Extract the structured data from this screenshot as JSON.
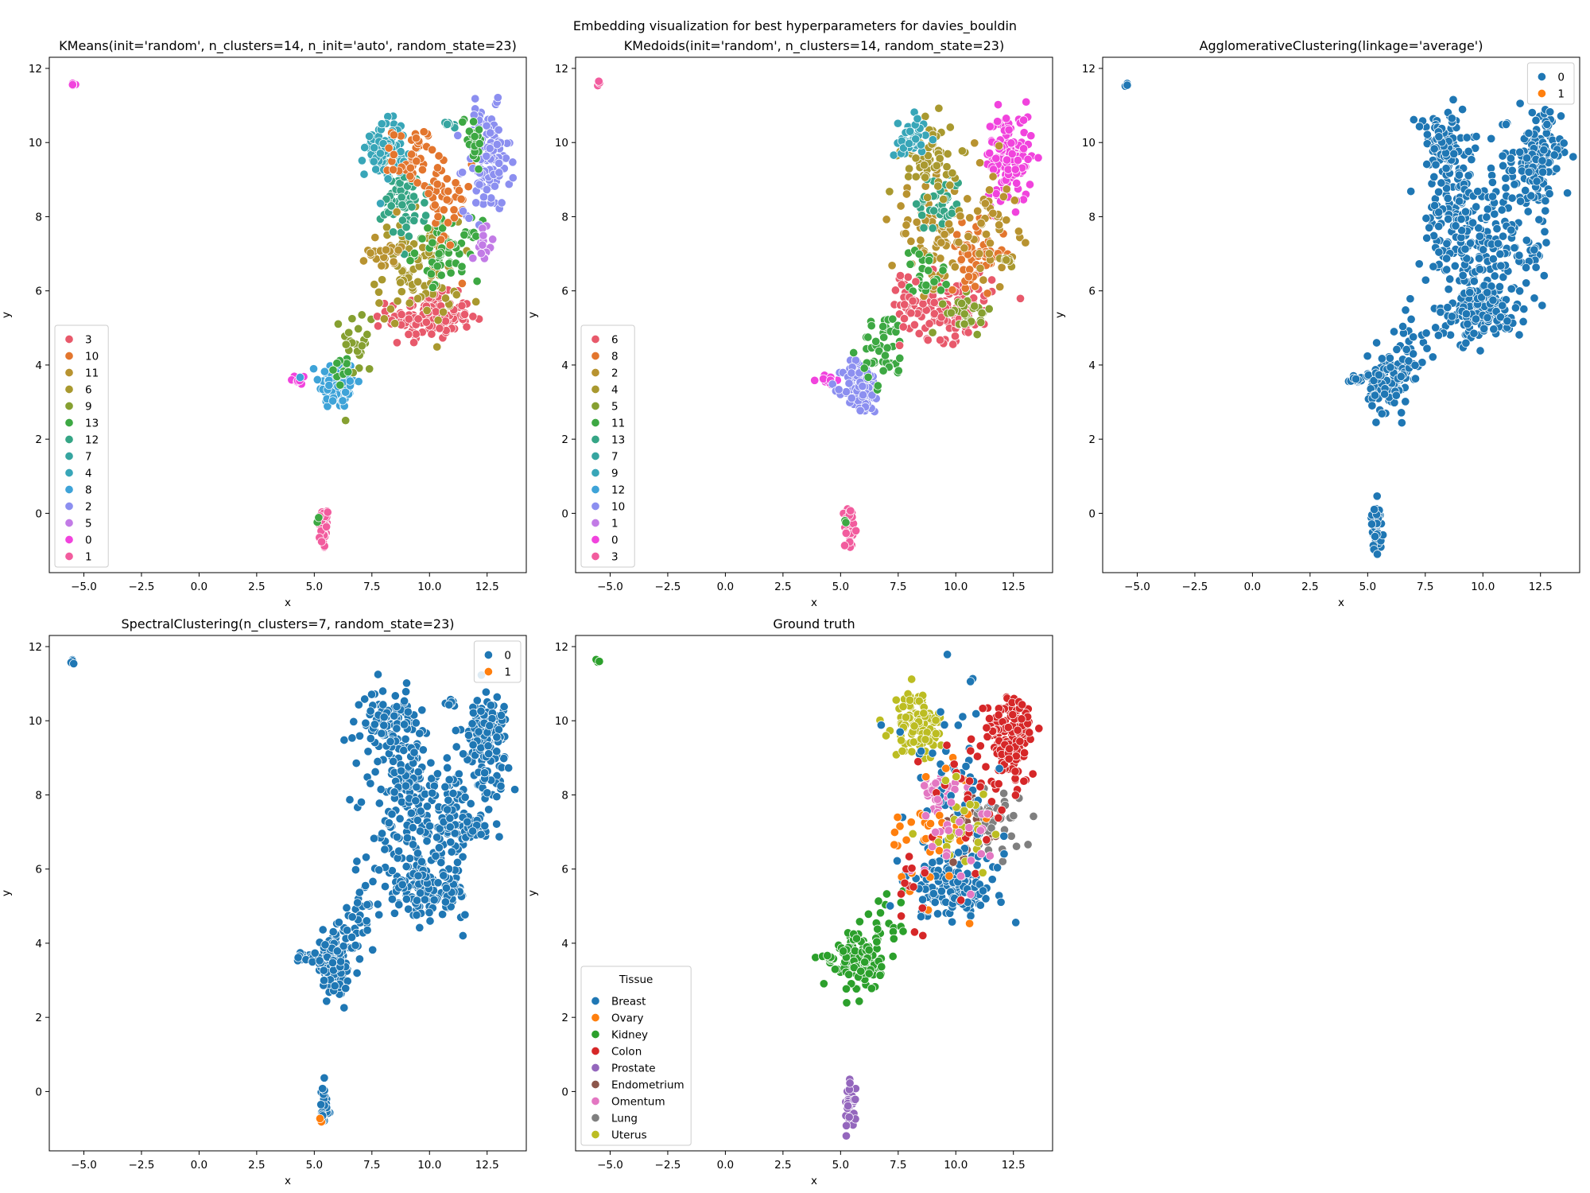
{
  "suptitle": "Embedding visualization for best hyperparameters for davies_bouldin",
  "chart_data": [
    {
      "type": "scatter",
      "title": "KMeans(init='random', n_clusters=14, n_init='auto', random_state=23)",
      "xlabel": "x",
      "ylabel": "y",
      "xlim": [
        -6.5,
        14.2
      ],
      "ylim": [
        -1.6,
        12.3
      ],
      "xticks": [
        "−5.0",
        "−2.5",
        "0.0",
        "2.5",
        "5.0",
        "7.5",
        "10.0",
        "12.5"
      ],
      "yticks": [
        "0",
        "2",
        "4",
        "6",
        "8",
        "10",
        "12"
      ],
      "legend": {
        "title": "",
        "placement": "lower-left",
        "entries": [
          {
            "label": "3",
            "color": "#e8596b"
          },
          {
            "label": "10",
            "color": "#e3762e"
          },
          {
            "label": "11",
            "color": "#b89330"
          },
          {
            "label": "6",
            "color": "#a9992f"
          },
          {
            "label": "9",
            "color": "#86a031"
          },
          {
            "label": "13",
            "color": "#3da843"
          },
          {
            "label": "12",
            "color": "#35a585"
          },
          {
            "label": "7",
            "color": "#36a5a0"
          },
          {
            "label": "4",
            "color": "#38a6b8"
          },
          {
            "label": "8",
            "color": "#3ea3d8"
          },
          {
            "label": "2",
            "color": "#8c8ff0"
          },
          {
            "label": "5",
            "color": "#c27be6"
          },
          {
            "label": "0",
            "color": "#f143dd"
          },
          {
            "label": "1",
            "color": "#f25c9e"
          }
        ]
      },
      "regions": [
        {
          "cx": -5.5,
          "cy": 11.6,
          "sx": 0.05,
          "sy": 0.05,
          "n": 4,
          "color": "#f143dd"
        },
        {
          "cx": 5.4,
          "cy": -0.4,
          "sx": 0.12,
          "sy": 0.3,
          "n": 40,
          "color": "#f25c9e"
        },
        {
          "cx": 5.2,
          "cy": -0.2,
          "sx": 0.05,
          "sy": 0.05,
          "n": 2,
          "color": "#3da843"
        },
        {
          "cx": 4.4,
          "cy": 3.6,
          "sx": 0.2,
          "sy": 0.07,
          "n": 12,
          "color": "#f143dd"
        },
        {
          "cx": 6.0,
          "cy": 3.5,
          "sx": 0.4,
          "sy": 0.35,
          "n": 110,
          "color": "#3ea3d8"
        },
        {
          "cx": 6.9,
          "cy": 4.6,
          "sx": 0.35,
          "sy": 0.5,
          "n": 25,
          "color": "#86a031"
        },
        {
          "cx": 10.0,
          "cy": 5.3,
          "sx": 0.9,
          "sy": 0.3,
          "n": 130,
          "color": "#e8596b"
        },
        {
          "cx": 9.5,
          "cy": 6.5,
          "sx": 0.9,
          "sy": 0.7,
          "n": 90,
          "color": "#a9992f"
        },
        {
          "cx": 10.8,
          "cy": 7.1,
          "sx": 0.7,
          "sy": 0.4,
          "n": 60,
          "color": "#3da843"
        },
        {
          "cx": 8.9,
          "cy": 8.5,
          "sx": 0.5,
          "sy": 0.55,
          "n": 80,
          "color": "#35a585"
        },
        {
          "cx": 8.1,
          "cy": 9.9,
          "sx": 0.45,
          "sy": 0.4,
          "n": 80,
          "color": "#38a6b8"
        },
        {
          "cx": 9.3,
          "cy": 9.6,
          "sx": 0.45,
          "sy": 0.4,
          "n": 40,
          "color": "#e3762e"
        },
        {
          "cx": 10.6,
          "cy": 8.3,
          "sx": 0.6,
          "sy": 0.7,
          "n": 40,
          "color": "#e3762e"
        },
        {
          "cx": 12.5,
          "cy": 9.5,
          "sx": 0.5,
          "sy": 0.7,
          "n": 120,
          "color": "#8c8ff0"
        },
        {
          "cx": 11.9,
          "cy": 10.2,
          "sx": 0.25,
          "sy": 0.35,
          "n": 25,
          "color": "#3da843"
        },
        {
          "cx": 12.3,
          "cy": 7.2,
          "sx": 0.2,
          "sy": 0.3,
          "n": 15,
          "color": "#c27be6"
        },
        {
          "cx": 10.9,
          "cy": 10.5,
          "sx": 0.15,
          "sy": 0.05,
          "n": 8,
          "color": "#36a5a0"
        },
        {
          "cx": 8.0,
          "cy": 7.1,
          "sx": 0.35,
          "sy": 0.3,
          "n": 25,
          "color": "#b89330"
        },
        {
          "cx": 6.3,
          "cy": 3.9,
          "sx": 0.25,
          "sy": 0.2,
          "n": 10,
          "color": "#3da843"
        }
      ]
    },
    {
      "type": "scatter",
      "title": "KMedoids(init='random', n_clusters=14, random_state=23)",
      "xlabel": "x",
      "ylabel": "y",
      "xlim": [
        -6.5,
        14.2
      ],
      "ylim": [
        -1.6,
        12.3
      ],
      "xticks": [
        "−5.0",
        "−2.5",
        "0.0",
        "2.5",
        "5.0",
        "7.5",
        "10.0",
        "12.5"
      ],
      "yticks": [
        "0",
        "2",
        "4",
        "6",
        "8",
        "10",
        "12"
      ],
      "legend": {
        "title": "",
        "placement": "lower-left",
        "entries": [
          {
            "label": "6",
            "color": "#e8596b"
          },
          {
            "label": "8",
            "color": "#e3762e"
          },
          {
            "label": "2",
            "color": "#b89330"
          },
          {
            "label": "4",
            "color": "#a9992f"
          },
          {
            "label": "5",
            "color": "#86a031"
          },
          {
            "label": "11",
            "color": "#3da843"
          },
          {
            "label": "13",
            "color": "#35a585"
          },
          {
            "label": "7",
            "color": "#36a5a0"
          },
          {
            "label": "9",
            "color": "#38a6b8"
          },
          {
            "label": "12",
            "color": "#3ea3d8"
          },
          {
            "label": "10",
            "color": "#8c8ff0"
          },
          {
            "label": "1",
            "color": "#c27be6"
          },
          {
            "label": "0",
            "color": "#f143dd"
          },
          {
            "label": "3",
            "color": "#f25c9e"
          }
        ]
      },
      "regions": [
        {
          "cx": -5.5,
          "cy": 11.6,
          "sx": 0.05,
          "sy": 0.05,
          "n": 4,
          "color": "#f25c9e"
        },
        {
          "cx": 5.4,
          "cy": -0.4,
          "sx": 0.12,
          "sy": 0.3,
          "n": 40,
          "color": "#f25c9e"
        },
        {
          "cx": 5.2,
          "cy": -0.2,
          "sx": 0.05,
          "sy": 0.05,
          "n": 2,
          "color": "#3da843"
        },
        {
          "cx": 4.4,
          "cy": 3.6,
          "sx": 0.2,
          "sy": 0.07,
          "n": 12,
          "color": "#f143dd"
        },
        {
          "cx": 5.9,
          "cy": 3.4,
          "sx": 0.4,
          "sy": 0.35,
          "n": 110,
          "color": "#8c8ff0"
        },
        {
          "cx": 6.9,
          "cy": 4.4,
          "sx": 0.5,
          "sy": 0.5,
          "n": 45,
          "color": "#3da843"
        },
        {
          "cx": 9.6,
          "cy": 5.6,
          "sx": 1.0,
          "sy": 0.45,
          "n": 130,
          "color": "#e8596b"
        },
        {
          "cx": 10.6,
          "cy": 5.4,
          "sx": 0.5,
          "sy": 0.25,
          "n": 30,
          "color": "#86a031"
        },
        {
          "cx": 10.9,
          "cy": 7.0,
          "sx": 0.6,
          "sy": 0.4,
          "n": 60,
          "color": "#e3762e"
        },
        {
          "cx": 9.0,
          "cy": 7.5,
          "sx": 0.9,
          "sy": 0.7,
          "n": 70,
          "color": "#b89330"
        },
        {
          "cx": 9.3,
          "cy": 8.4,
          "sx": 0.5,
          "sy": 0.4,
          "n": 40,
          "color": "#35a585"
        },
        {
          "cx": 8.9,
          "cy": 9.6,
          "sx": 0.6,
          "sy": 0.5,
          "n": 60,
          "color": "#a9992f"
        },
        {
          "cx": 8.0,
          "cy": 10.1,
          "sx": 0.35,
          "sy": 0.3,
          "n": 40,
          "color": "#38a6b8"
        },
        {
          "cx": 12.3,
          "cy": 9.6,
          "sx": 0.5,
          "sy": 0.6,
          "n": 130,
          "color": "#f143dd"
        },
        {
          "cx": 11.5,
          "cy": 8.0,
          "sx": 0.6,
          "sy": 0.8,
          "n": 40,
          "color": "#b89330"
        },
        {
          "cx": 12.2,
          "cy": 6.9,
          "sx": 0.15,
          "sy": 0.1,
          "n": 8,
          "color": "#a9992f"
        },
        {
          "cx": 8.7,
          "cy": 6.4,
          "sx": 0.5,
          "sy": 0.4,
          "n": 25,
          "color": "#3da843"
        },
        {
          "cx": 7.9,
          "cy": 5.9,
          "sx": 0.25,
          "sy": 0.35,
          "n": 12,
          "color": "#e8596b"
        }
      ]
    },
    {
      "type": "scatter",
      "title": "AgglomerativeClustering(linkage='average')",
      "xlabel": "x",
      "ylabel": "y",
      "xlim": [
        -6.5,
        14.2
      ],
      "ylim": [
        -1.6,
        12.3
      ],
      "xticks": [
        "−5.0",
        "−2.5",
        "0.0",
        "2.5",
        "5.0",
        "7.5",
        "10.0",
        "12.5"
      ],
      "yticks": [
        "0",
        "2",
        "4",
        "6",
        "8",
        "10",
        "12"
      ],
      "legend": {
        "title": "",
        "placement": "upper-right",
        "entries": [
          {
            "label": "0",
            "color": "#1f77b4"
          },
          {
            "label": "1",
            "color": "#ff7f0e"
          }
        ]
      },
      "regions": "all-blue"
    },
    {
      "type": "scatter",
      "title": "SpectralClustering(n_clusters=7, random_state=23)",
      "xlabel": "x",
      "ylabel": "y",
      "xlim": [
        -6.5,
        14.2
      ],
      "ylim": [
        -1.6,
        12.3
      ],
      "xticks": [
        "−5.0",
        "−2.5",
        "0.0",
        "2.5",
        "5.0",
        "7.5",
        "10.0",
        "12.5"
      ],
      "yticks": [
        "0",
        "2",
        "4",
        "6",
        "8",
        "10",
        "12"
      ],
      "legend": {
        "title": "",
        "placement": "upper-right",
        "entries": [
          {
            "label": "0",
            "color": "#1f77b4"
          },
          {
            "label": "1",
            "color": "#ff7f0e"
          }
        ]
      },
      "regions": "all-blue-with-orange"
    },
    {
      "type": "scatter",
      "title": "Ground truth",
      "xlabel": "x",
      "ylabel": "y",
      "xlim": [
        -6.5,
        14.2
      ],
      "ylim": [
        -1.6,
        12.3
      ],
      "xticks": [
        "−5.0",
        "−2.5",
        "0.0",
        "2.5",
        "5.0",
        "7.5",
        "10.0",
        "12.5"
      ],
      "yticks": [
        "0",
        "2",
        "4",
        "6",
        "8",
        "10",
        "12"
      ],
      "legend": {
        "title": "Tissue",
        "placement": "lower-left",
        "entries": [
          {
            "label": "Breast",
            "color": "#1f77b4"
          },
          {
            "label": "Ovary",
            "color": "#ff7f0e"
          },
          {
            "label": "Kidney",
            "color": "#2ca02c"
          },
          {
            "label": "Colon",
            "color": "#d62728"
          },
          {
            "label": "Prostate",
            "color": "#9467bd"
          },
          {
            "label": "Endometrium",
            "color": "#8c564b"
          },
          {
            "label": "Omentum",
            "color": "#e377c2"
          },
          {
            "label": "Lung",
            "color": "#7f7f7f"
          },
          {
            "label": "Uterus",
            "color": "#bcbd22"
          }
        ]
      },
      "regions": [
        {
          "cx": -5.5,
          "cy": 11.6,
          "sx": 0.05,
          "sy": 0.05,
          "n": 4,
          "color": "#2ca02c"
        },
        {
          "cx": 5.4,
          "cy": -0.4,
          "sx": 0.12,
          "sy": 0.3,
          "n": 40,
          "color": "#9467bd"
        },
        {
          "cx": 4.4,
          "cy": 3.6,
          "sx": 0.2,
          "sy": 0.07,
          "n": 12,
          "color": "#2ca02c"
        },
        {
          "cx": 5.9,
          "cy": 3.5,
          "sx": 0.45,
          "sy": 0.4,
          "n": 130,
          "color": "#2ca02c"
        },
        {
          "cx": 6.9,
          "cy": 4.6,
          "sx": 0.4,
          "sy": 0.5,
          "n": 20,
          "color": "#2ca02c"
        },
        {
          "cx": 9.8,
          "cy": 5.5,
          "sx": 1.0,
          "sy": 0.4,
          "n": 130,
          "color": "#1f77b4"
        },
        {
          "cx": 10.5,
          "cy": 7.0,
          "sx": 0.6,
          "sy": 0.4,
          "n": 40,
          "color": "#8c564b"
        },
        {
          "cx": 11.6,
          "cy": 7.2,
          "sx": 0.6,
          "sy": 0.4,
          "n": 45,
          "color": "#7f7f7f"
        },
        {
          "cx": 9.2,
          "cy": 8.1,
          "sx": 0.4,
          "sy": 0.3,
          "n": 40,
          "color": "#e377c2"
        },
        {
          "cx": 8.4,
          "cy": 9.9,
          "sx": 0.55,
          "sy": 0.45,
          "n": 100,
          "color": "#bcbd22"
        },
        {
          "cx": 12.4,
          "cy": 9.5,
          "sx": 0.5,
          "sy": 0.6,
          "n": 140,
          "color": "#d62728"
        },
        {
          "cx": 9.8,
          "cy": 7.8,
          "sx": 1.2,
          "sy": 1.3,
          "n": 70,
          "color": "#1f77b4"
        },
        {
          "cx": 9.0,
          "cy": 7.2,
          "sx": 1.0,
          "sy": 0.9,
          "n": 40,
          "color": "#ff7f0e"
        },
        {
          "cx": 11.0,
          "cy": 8.5,
          "sx": 0.9,
          "sy": 1.2,
          "n": 35,
          "color": "#d62728"
        },
        {
          "cx": 10.5,
          "cy": 7.3,
          "sx": 1.0,
          "sy": 0.8,
          "n": 25,
          "color": "#bcbd22"
        },
        {
          "cx": 10.0,
          "cy": 7.0,
          "sx": 1.0,
          "sy": 0.6,
          "n": 25,
          "color": "#e377c2"
        },
        {
          "cx": 7.9,
          "cy": 5.3,
          "sx": 0.35,
          "sy": 0.4,
          "n": 12,
          "color": "#d62728"
        }
      ]
    }
  ]
}
